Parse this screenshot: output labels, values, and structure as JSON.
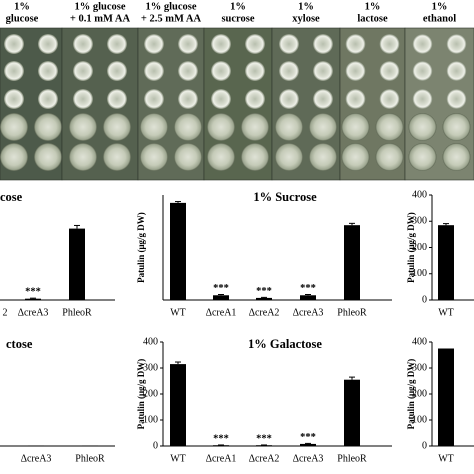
{
  "photo": {
    "labels": [
      [
        "1%",
        "glucose"
      ],
      [
        "1% glucose",
        "+ 0.1 mM AA"
      ],
      [
        "1% glucose",
        "+ 2.5 mM AA"
      ],
      [
        "1%",
        "sucrose"
      ],
      [
        "1%",
        "xylose"
      ],
      [
        "1%",
        "lactose"
      ],
      [
        "1%",
        "ethanol"
      ]
    ]
  },
  "chart_data": [
    {
      "type": "bar",
      "title": "cose",
      "categories": [
        "2",
        "ΔcreA3",
        "PhleoR"
      ],
      "values": [
        null,
        5,
        272
      ],
      "errors": [
        null,
        2,
        12
      ],
      "annotations": [
        null,
        "***",
        null
      ],
      "color": "#000000",
      "ylim": [
        0,
        400
      ]
    },
    {
      "type": "bar",
      "title": "1% Sucrose",
      "y_label": "Patulin (μg/g DW)",
      "categories": [
        "WT",
        "ΔcreA1",
        "ΔcreA2",
        "ΔcreA3",
        "PhleoR"
      ],
      "values": [
        370,
        18,
        8,
        18,
        285
      ],
      "errors": [
        5,
        3,
        2,
        3,
        7
      ],
      "annotations": [
        null,
        "***",
        "***",
        "***",
        null
      ],
      "color": "#000000",
      "ylim": [
        0,
        400
      ]
    },
    {
      "type": "bar",
      "y_label": "Patulin (μg/g DW)",
      "categories": [
        "WT"
      ],
      "values": [
        285
      ],
      "errors": [
        6
      ],
      "color": "#000000",
      "ylim": [
        0,
        400
      ],
      "yticks": [
        0,
        100,
        200,
        300,
        400
      ]
    },
    {
      "type": "bar",
      "title": "ctose",
      "categories": [
        "ΔcreA3",
        "PhleoR"
      ],
      "values": [
        2,
        2
      ],
      "color": "#000000",
      "ylim": [
        0,
        400
      ]
    },
    {
      "type": "bar",
      "title": "1% Galactose",
      "y_label": "Patulin (μg/g DW)",
      "categories": [
        "WT",
        "ΔcreA1",
        "ΔcreA2",
        "ΔcreA3",
        "PhleoR"
      ],
      "values": [
        315,
        3,
        3,
        8,
        255
      ],
      "errors": [
        8,
        1,
        1,
        2,
        10
      ],
      "annotations": [
        null,
        "***",
        "***",
        "***",
        null
      ],
      "color": "#000000",
      "ylim": [
        0,
        400
      ],
      "yticks": [
        0,
        100,
        200,
        300,
        400
      ]
    },
    {
      "type": "bar",
      "y_label": "Patulin (μg/g DW)",
      "categories": [
        "WT"
      ],
      "values": [
        375
      ],
      "color": "#000000",
      "ylim": [
        0,
        400
      ],
      "yticks": [
        0,
        100,
        200,
        300,
        400
      ]
    }
  ]
}
